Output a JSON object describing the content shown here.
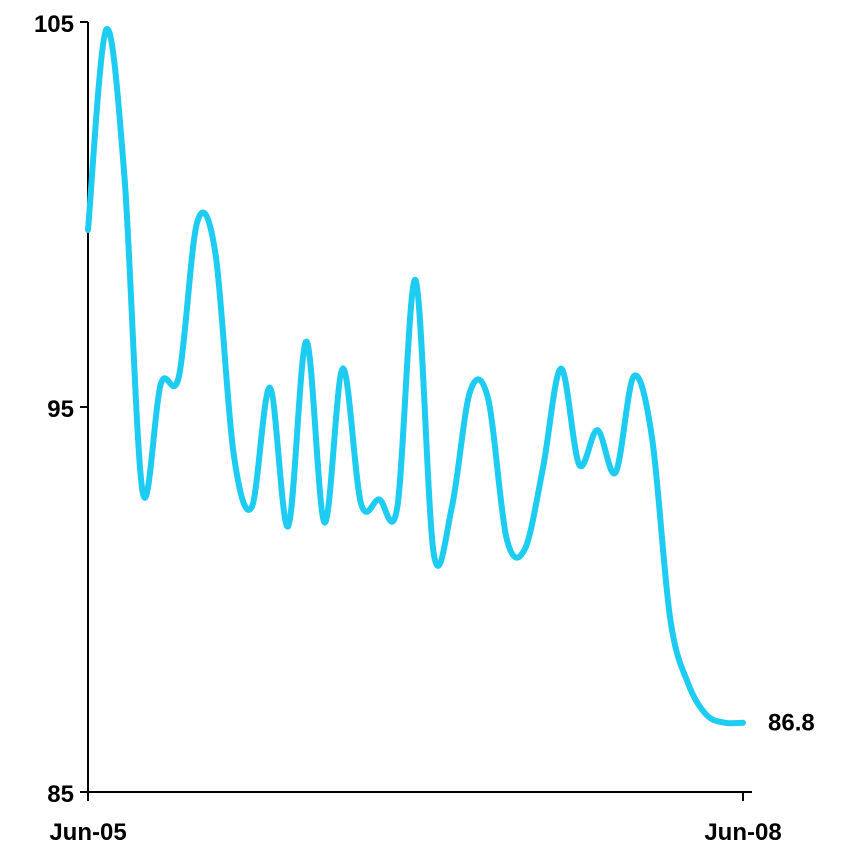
{
  "chart_data": {
    "type": "line",
    "title": "",
    "xlabel": "",
    "ylabel": "",
    "ylim": [
      85,
      105
    ],
    "y_ticks": [
      85,
      95,
      105
    ],
    "x_ticks": [
      "Jun-05",
      "Jun-08"
    ],
    "x_range_months": [
      "Jun-05",
      "Jun-08"
    ],
    "grid": false,
    "legend": "none",
    "line_color": "#1ECCF2",
    "end_label": "86.8",
    "series": [
      {
        "x": [
          "2005-06",
          "2005-07",
          "2005-08",
          "2005-09",
          "2005-10",
          "2005-11",
          "2005-12",
          "2006-01",
          "2006-02",
          "2006-03",
          "2006-04",
          "2006-05",
          "2006-06",
          "2006-07",
          "2006-08",
          "2006-09",
          "2006-10",
          "2006-11",
          "2006-12",
          "2007-01",
          "2007-02",
          "2007-03",
          "2007-04",
          "2007-05",
          "2007-06",
          "2007-07",
          "2007-08",
          "2007-09",
          "2007-10",
          "2007-11",
          "2007-12",
          "2008-01",
          "2008-02",
          "2008-03",
          "2008-04",
          "2008-05",
          "2008-06"
        ],
        "values": [
          99.6,
          104.8,
          101.0,
          92.8,
          95.6,
          95.8,
          99.8,
          99.0,
          93.8,
          92.4,
          95.5,
          91.9,
          96.7,
          92.0,
          96.0,
          92.5,
          92.6,
          92.4,
          98.3,
          91.2,
          92.4,
          95.4,
          95.2,
          91.6,
          91.3,
          93.4,
          96.0,
          93.5,
          94.4,
          93.3,
          95.8,
          94.2,
          89.5,
          87.8,
          87.0,
          86.8,
          86.8
        ]
      }
    ]
  }
}
